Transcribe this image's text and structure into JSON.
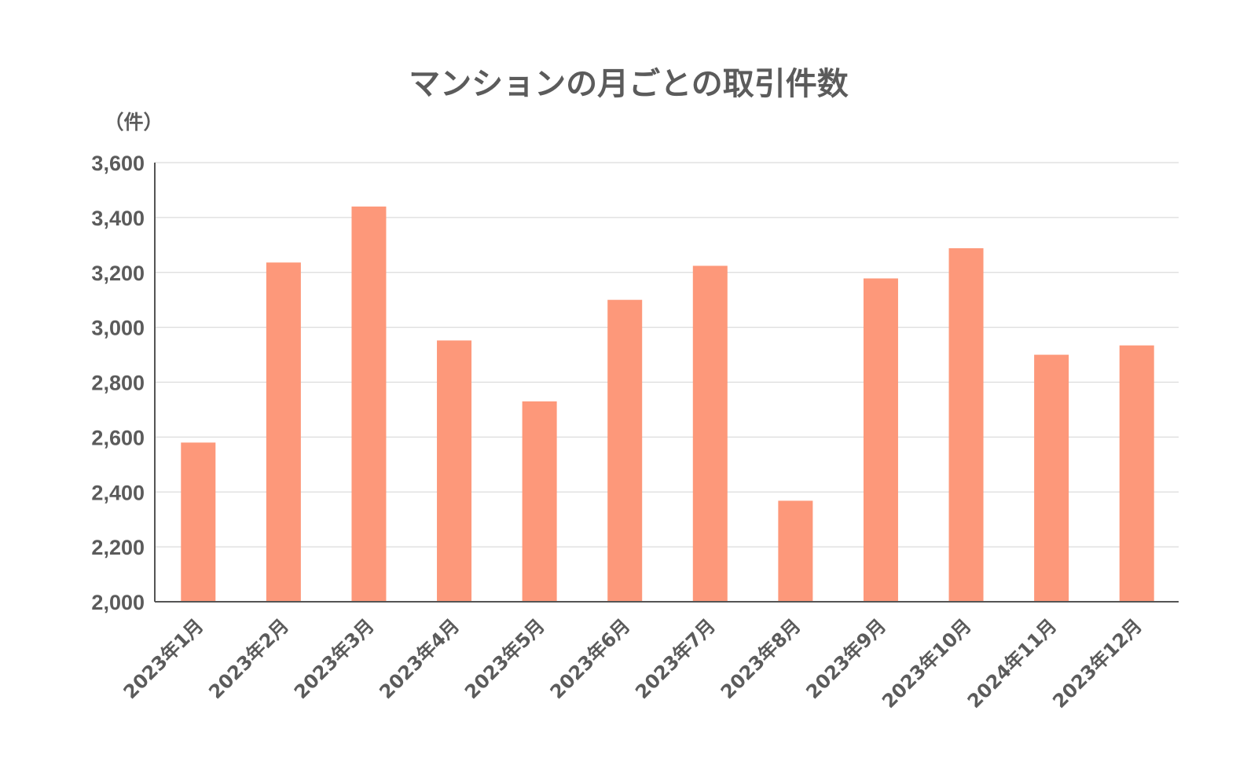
{
  "chart_data": {
    "type": "bar",
    "title": "マンションの月ごとの取引件数",
    "ylabel": "（件）",
    "xlabel": "",
    "categories": [
      "2023年1月",
      "2023年2月",
      "2023年3月",
      "2023年4月",
      "2023年5月",
      "2023年6月",
      "2023年7月",
      "2023年8月",
      "2023年9月",
      "2023年10月",
      "2024年11月",
      "2023年12月"
    ],
    "values": [
      2580,
      3236,
      3440,
      2952,
      2730,
      3100,
      3224,
      2368,
      3178,
      3288,
      2900,
      2934
    ],
    "ylim": [
      2000,
      3600
    ],
    "yticks": [
      2000,
      2200,
      2400,
      2600,
      2800,
      3000,
      3200,
      3400,
      3600
    ],
    "ytick_labels": [
      "2,000",
      "2,200",
      "2,400",
      "2,600",
      "2,800",
      "3,000",
      "3,200",
      "3,400",
      "3,600"
    ],
    "grid": true,
    "legend": "none",
    "bar_color": "#fd987a"
  }
}
